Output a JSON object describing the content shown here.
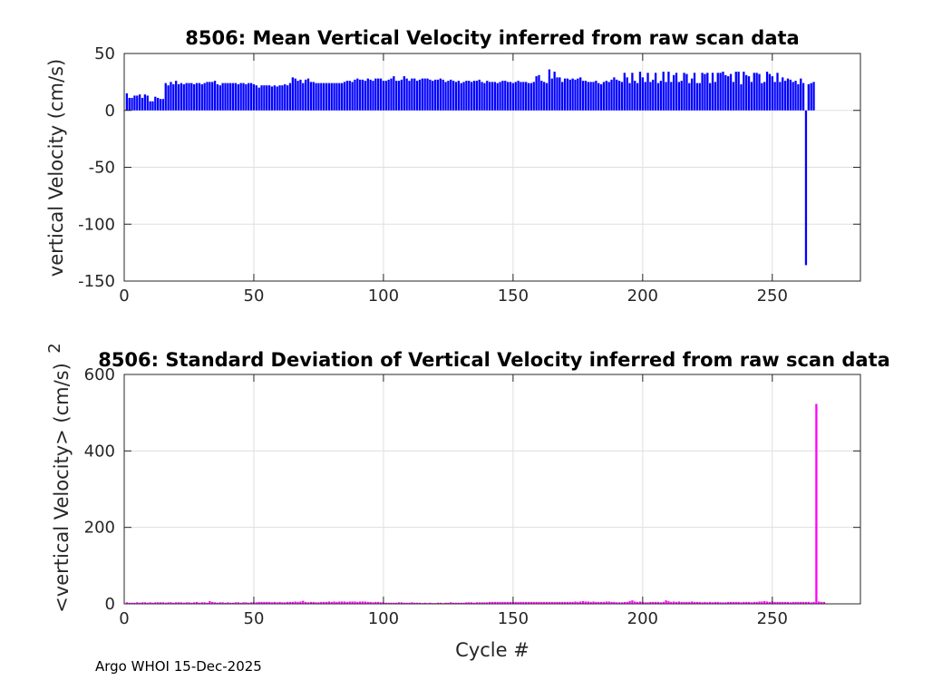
{
  "footer_text": "Argo WHOI 15-Dec-2025",
  "chart_data": [
    {
      "type": "bar",
      "title": "8506: Mean Vertical Velocity inferred from raw scan data",
      "xlabel": "",
      "ylabel": "vertical Velocity (cm/s)",
      "xlim": [
        0,
        284
      ],
      "ylim": [
        -150,
        50
      ],
      "xticks": [
        0,
        50,
        100,
        150,
        200,
        250
      ],
      "yticks": [
        50,
        0,
        -50,
        -100,
        -150
      ],
      "grid": true,
      "color": "#0000ff",
      "series": [
        {
          "name": "mean vertical velocity",
          "x_start": 1,
          "values": [
            15,
            11,
            11,
            13,
            13,
            14,
            11,
            14,
            13,
            8,
            8,
            12,
            11,
            10,
            10,
            24,
            22,
            25,
            23,
            26,
            23,
            24,
            23,
            24,
            24,
            24,
            23,
            24,
            24,
            23,
            24,
            25,
            25,
            25,
            26,
            23,
            22,
            24,
            24,
            24,
            24,
            24,
            24,
            23,
            24,
            24,
            23,
            24,
            24,
            23,
            22,
            20,
            22,
            22,
            22,
            22,
            21,
            22,
            21,
            22,
            22,
            23,
            22,
            24,
            29,
            28,
            26,
            27,
            24,
            27,
            28,
            25,
            25,
            24,
            24,
            24,
            24,
            24,
            24,
            24,
            24,
            24,
            24,
            24,
            25,
            26,
            26,
            25,
            27,
            28,
            27,
            27,
            26,
            28,
            27,
            26,
            28,
            28,
            28,
            26,
            26,
            27,
            28,
            30,
            26,
            26,
            27,
            30,
            28,
            26,
            28,
            28,
            26,
            27,
            28,
            28,
            28,
            27,
            26,
            27,
            27,
            28,
            27,
            25,
            26,
            27,
            26,
            25,
            26,
            24,
            25,
            26,
            26,
            25,
            26,
            26,
            27,
            25,
            24,
            26,
            25,
            25,
            25,
            24,
            25,
            26,
            26,
            25,
            25,
            24,
            25,
            26,
            25,
            25,
            25,
            24,
            24,
            25,
            30,
            31,
            26,
            25,
            24,
            36,
            28,
            34,
            29,
            29,
            25,
            28,
            28,
            27,
            28,
            27,
            28,
            29,
            26,
            26,
            25,
            25,
            25,
            26,
            24,
            23,
            25,
            26,
            25,
            27,
            29,
            27,
            26,
            25,
            33,
            29,
            24,
            33,
            26,
            24,
            34,
            29,
            25,
            33,
            25,
            27,
            33,
            24,
            26,
            34,
            25,
            34,
            25,
            31,
            33,
            25,
            26,
            33,
            32,
            24,
            28,
            33,
            24,
            24,
            33,
            32,
            33,
            24,
            33,
            25,
            33,
            33,
            34,
            31,
            30,
            32,
            25,
            34,
            34,
            23,
            34,
            31,
            30,
            25,
            33,
            33,
            32,
            24,
            25,
            34,
            32,
            30,
            25,
            33,
            25,
            29,
            26,
            28,
            27,
            25,
            26,
            23,
            28,
            24,
            -136,
            23,
            24,
            25
          ]
        }
      ]
    },
    {
      "type": "bar",
      "title": "8506: Standard Deviation of Vertical Velocity inferred from raw scan data",
      "xlabel": "Cycle #",
      "ylabel": "<vertical Velocity> (cm/s)",
      "ylabel_superscript": "2",
      "xlim": [
        0,
        284
      ],
      "ylim": [
        0,
        600
      ],
      "xticks": [
        0,
        50,
        100,
        150,
        200,
        250
      ],
      "yticks": [
        600,
        400,
        200,
        0
      ],
      "grid": true,
      "color": "#ff00ff",
      "series": [
        {
          "name": "std vertical velocity",
          "x_start": 1,
          "values": [
            4,
            3,
            3,
            3,
            4,
            3,
            4,
            4,
            3,
            4,
            3,
            4,
            4,
            4,
            4,
            3,
            4,
            4,
            3,
            4,
            4,
            4,
            3,
            4,
            4,
            3,
            4,
            5,
            3,
            4,
            4,
            3,
            7,
            5,
            4,
            3,
            4,
            4,
            3,
            4,
            3,
            3,
            4,
            4,
            3,
            4,
            4,
            3,
            4,
            4,
            4,
            5,
            5,
            5,
            5,
            5,
            4,
            5,
            4,
            5,
            4,
            4,
            5,
            5,
            5,
            6,
            5,
            6,
            8,
            5,
            4,
            5,
            5,
            4,
            4,
            5,
            5,
            5,
            6,
            5,
            6,
            5,
            6,
            6,
            6,
            5,
            6,
            6,
            6,
            5,
            6,
            6,
            6,
            5,
            5,
            4,
            5,
            5,
            4,
            4,
            3,
            3,
            3,
            3,
            3,
            4,
            4,
            3,
            3,
            3,
            4,
            3,
            3,
            3,
            2,
            3,
            2,
            3,
            2,
            2,
            3,
            3,
            2,
            3,
            3,
            4,
            3,
            3,
            3,
            3,
            3,
            4,
            4,
            4,
            3,
            4,
            4,
            4,
            4,
            4,
            5,
            5,
            5,
            5,
            5,
            5,
            5,
            5,
            5,
            5,
            5,
            5,
            5,
            5,
            5,
            5,
            5,
            5,
            5,
            5,
            5,
            5,
            5,
            5,
            5,
            5,
            5,
            5,
            5,
            5,
            5,
            5,
            5,
            6,
            5,
            6,
            7,
            6,
            6,
            5,
            6,
            5,
            5,
            5,
            5,
            6,
            6,
            5,
            5,
            4,
            4,
            4,
            5,
            5,
            7,
            9,
            6,
            5,
            6,
            5,
            4,
            4,
            5,
            5,
            5,
            5,
            4,
            5,
            9,
            7,
            5,
            6,
            5,
            6,
            5,
            5,
            5,
            5,
            6,
            5,
            5,
            5,
            4,
            5,
            4,
            5,
            4,
            5,
            5,
            4,
            4,
            4,
            5,
            5,
            5,
            5,
            5,
            4,
            5,
            5,
            5,
            4,
            5,
            5,
            6,
            6,
            7,
            6,
            5,
            6,
            5,
            5,
            5,
            5,
            5,
            5,
            4,
            5,
            5,
            5,
            5,
            5,
            5,
            5,
            4,
            5,
            523,
            6,
            5,
            5
          ]
        }
      ]
    }
  ]
}
